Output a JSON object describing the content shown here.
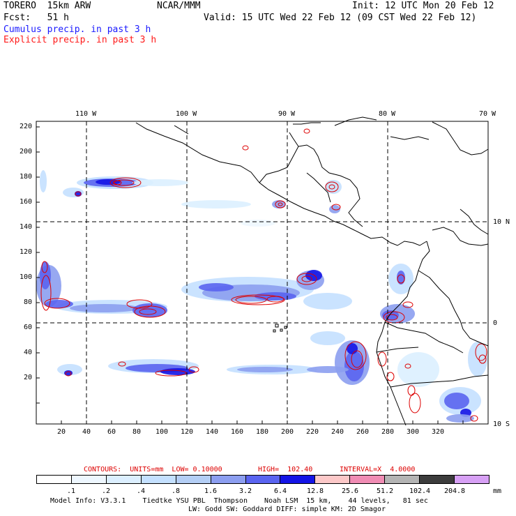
{
  "header": {
    "model": "TORERO  15km ARW",
    "org": "NCAR/MMM",
    "init": "Init: 12 UTC Mon 20 Feb 12",
    "fcst": "Fcst:   51 h",
    "valid": "Valid: 15 UTC Wed 22 Feb 12 (09 CST Wed 22 Feb 12)",
    "cumulus_label": "Cumulus precip. in past 3 h",
    "explicit_label": "Explicit precip. in past 3 h"
  },
  "axes": {
    "lon_labels": [
      "110 W",
      "100 W",
      "90 W",
      "80 W",
      "70 W"
    ],
    "lat_labels": [
      "10 N",
      "0",
      "10 S"
    ],
    "y_ticks": [
      "220",
      "200",
      "180",
      "160",
      "140",
      "120",
      "100",
      "80",
      "60",
      "40",
      "20"
    ],
    "x_ticks": [
      "20",
      "40",
      "60",
      "80",
      "100",
      "120",
      "140",
      "160",
      "180",
      "200",
      "220",
      "240",
      "260",
      "280",
      "300",
      "320"
    ]
  },
  "contour_info": {
    "units": "CONTOURS:  UNITS=mm  LOW= 0.10000",
    "high": "HIGH=  102.40",
    "interval": "INTERVAL=X  4.0000"
  },
  "legend": {
    "labels": [
      ".1",
      ".2",
      ".4",
      ".8",
      "1.6",
      "3.2",
      "6.4",
      "12.8",
      "25.6",
      "51.2",
      "102.4",
      "204.8"
    ],
    "unit": "mm",
    "colors": [
      "#ffffff",
      "#eef7ff",
      "#dcefff",
      "#c4e0ff",
      "#b4cef5",
      "#8c9ef0",
      "#5a64f0",
      "#1414e6",
      "#fcc8c8",
      "#f08cb4",
      "#b4b4b4",
      "#3c3c3c",
      "#d7a0f5"
    ]
  },
  "footer": {
    "line1": "Model Info: V3.3.1    Tiedtke YSU PBL  Thompson    Noah LSM  15 km,    44 levels,   81 sec",
    "line2": "LW: Godd SW: Goddard DIFF: simple KM: 2D Smagor"
  }
}
